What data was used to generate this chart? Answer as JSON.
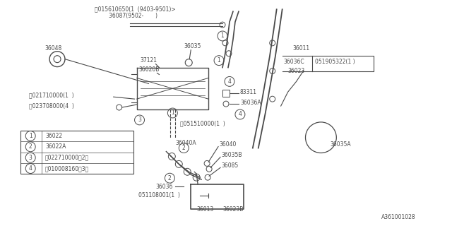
{
  "bg_color": "#ffffff",
  "line_color": "#4a4a4a",
  "diagram_id": "A361001028",
  "legend_items": [
    {
      "num": "1",
      "label": "36022"
    },
    {
      "num": "2",
      "label": "36022A"
    },
    {
      "num": "3",
      "label": "ⓝ022710000（2）"
    },
    {
      "num": "4",
      "label": "Ⓑ010008160（3）"
    }
  ],
  "label_fs": 5.8,
  "circ_r": 0.013
}
